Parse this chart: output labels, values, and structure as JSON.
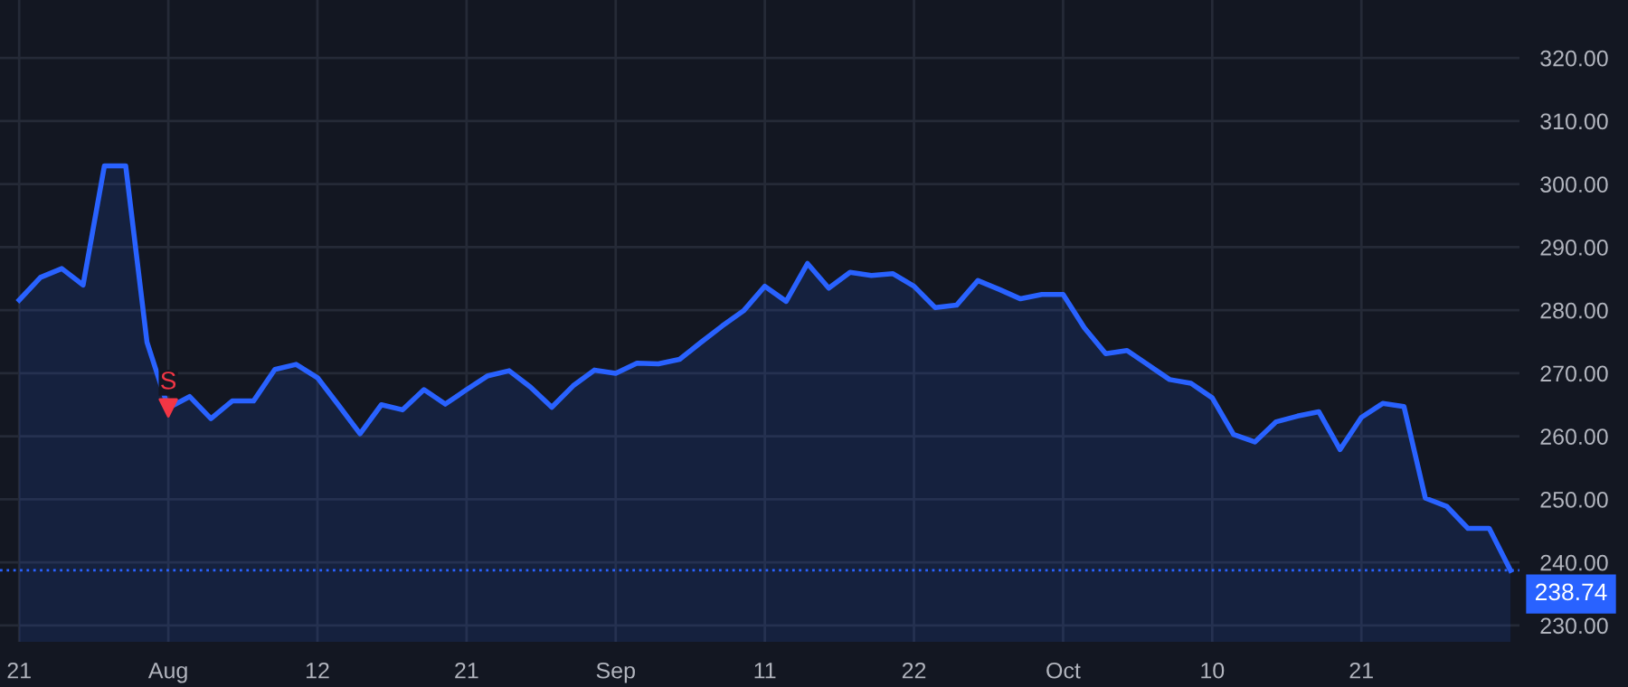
{
  "chart_data": {
    "type": "area",
    "categories": [
      "21",
      null,
      null,
      null,
      null,
      null,
      null,
      "Aug",
      null,
      null,
      null,
      null,
      null,
      null,
      "12",
      null,
      null,
      null,
      null,
      null,
      null,
      "21",
      null,
      null,
      null,
      null,
      null,
      null,
      "Sep",
      null,
      null,
      null,
      null,
      null,
      null,
      "11",
      null,
      null,
      null,
      null,
      null,
      null,
      "22",
      null,
      null,
      null,
      null,
      null,
      null,
      "Oct",
      null,
      null,
      null,
      null,
      null,
      null,
      "10",
      null,
      null,
      null,
      null,
      null,
      null,
      "21",
      null,
      null,
      null,
      null,
      null,
      null,
      null
    ],
    "series": [
      {
        "color": "#2962ff",
        "values": [
          281.6,
          285.2,
          286.6,
          284.0,
          302.9,
          302.9,
          274.9,
          264.5,
          266.3,
          262.8,
          265.6,
          265.6,
          270.6,
          271.4,
          269.3,
          264.9,
          260.4,
          265.0,
          264.2,
          267.4,
          265.1,
          267.4,
          269.6,
          270.4,
          267.8,
          264.6,
          268.0,
          270.5,
          270.0,
          271.6,
          271.5,
          272.2,
          274.9,
          277.5,
          279.9,
          283.8,
          281.4,
          287.4,
          283.5,
          286.0,
          285.5,
          285.8,
          283.8,
          280.4,
          280.8,
          284.7,
          283.3,
          281.8,
          282.5,
          282.5,
          277.2,
          273.1,
          273.6,
          271.3,
          269.0,
          268.4,
          266.1,
          260.3,
          259.1,
          262.3,
          263.2,
          263.9,
          257.9,
          263.0,
          265.2,
          264.7,
          250.2,
          248.9,
          245.4,
          245.4,
          238.74
        ]
      },
      {
        "type": "scatter",
        "color": "#f23645",
        "marker": "triangle",
        "values": [
          null,
          null,
          null,
          null,
          null,
          null,
          null,
          264.5,
          null,
          null,
          null,
          null,
          null,
          null,
          null,
          null,
          null,
          null,
          null,
          null,
          null,
          null,
          null,
          null,
          null,
          null,
          null,
          null,
          null,
          null,
          null,
          null,
          null,
          null,
          null,
          null,
          null,
          null,
          null,
          null,
          null,
          null,
          null,
          null,
          null,
          null,
          null,
          null,
          null,
          null,
          null,
          null,
          null,
          null,
          null,
          null,
          null,
          null,
          null,
          null,
          null,
          null,
          null,
          null,
          null,
          null,
          null,
          null,
          null,
          null,
          null
        ]
      }
    ],
    "annotations": [
      "S"
    ],
    "ylim": [
      227.4,
      329.2
    ],
    "yticks": [
      {
        "value": 230,
        "label": "230.00"
      },
      {
        "value": 240,
        "label": "240.00"
      },
      {
        "value": 250,
        "label": "250.00"
      },
      {
        "value": 260,
        "label": "260.00"
      },
      {
        "value": 270,
        "label": "270.00"
      },
      {
        "value": 280,
        "label": "280.00"
      },
      {
        "value": 290,
        "label": "290.00"
      },
      {
        "value": 300,
        "label": "300.00"
      },
      {
        "value": 310,
        "label": "310.00"
      },
      {
        "value": 320,
        "label": "320.00"
      }
    ],
    "ref_lines": [
      {
        "axis": "y",
        "value": 238.74,
        "label": "238.74",
        "color": "#2962ff",
        "line_style": "dotted"
      }
    ],
    "grid": true
  }
}
